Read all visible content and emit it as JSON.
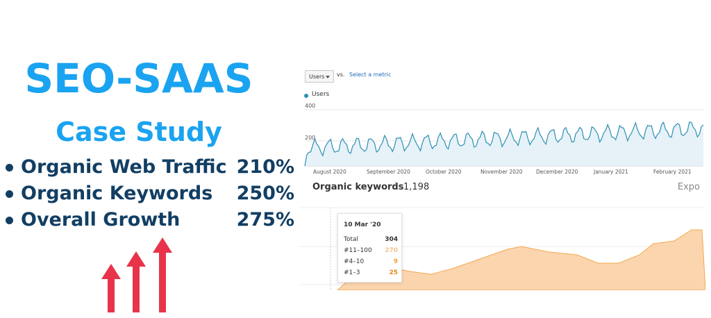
{
  "headline": {
    "title": "SEO-SAAS",
    "subtitle": "Case Study",
    "bullets": [
      {
        "label": "Organic Web Traffic",
        "value": "210%"
      },
      {
        "label": "Organic Keywords",
        "value": "250%"
      },
      {
        "label": "Overall Growth",
        "value": "275%"
      }
    ],
    "arrow_color": "#e8344a"
  },
  "analytics": {
    "metric": "Users",
    "vs_label": "vs.",
    "select_metric_link": "Select a metric",
    "legend": "Users",
    "y_ticks": [
      "400",
      "200"
    ],
    "months": [
      "August 2020",
      "September 2020",
      "October 2020",
      "November 2020",
      "December 2020",
      "January 2021",
      "February 2021"
    ],
    "line_color": "#2c8fb3"
  },
  "keywords": {
    "title": "Organic keywords",
    "info": "i",
    "count": "1,198",
    "export": "Expo",
    "fill_color": "#f9c793",
    "tooltip": {
      "date": "10 Mar '20",
      "rows": [
        {
          "label": "Total",
          "value": "304",
          "color": "#333333"
        },
        {
          "label": "#11–100",
          "value": "270",
          "color": "#f5c28a"
        },
        {
          "label": "#4–10",
          "value": "9",
          "color": "#f0a030"
        },
        {
          "label": "#1–3",
          "value": "25",
          "color": "#e08a10"
        }
      ]
    }
  }
}
